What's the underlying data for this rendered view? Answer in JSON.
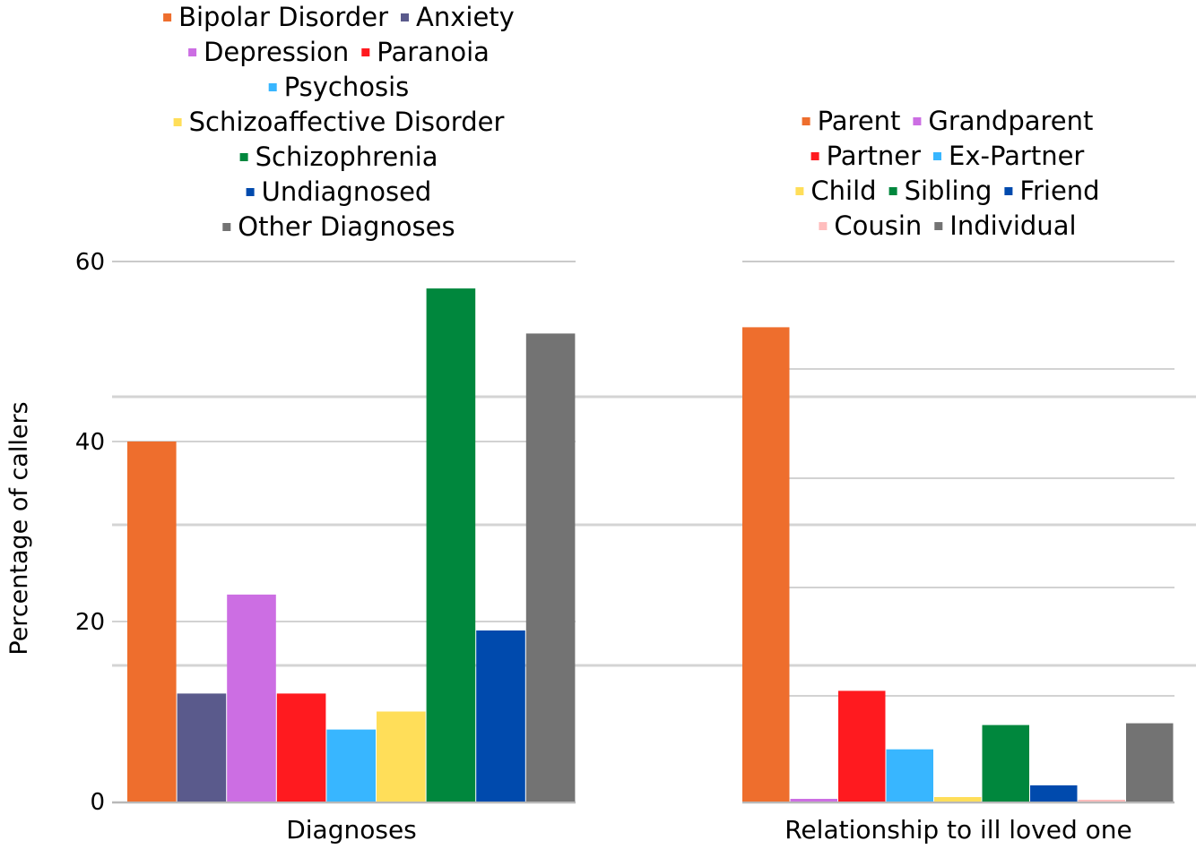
{
  "chart_data": [
    {
      "type": "bar",
      "title": "",
      "ylabel": "Percentage of callers",
      "xlabel": "",
      "ylim": [
        0,
        60
      ],
      "yticks": [
        0,
        20,
        40,
        60
      ],
      "grid": true,
      "legend_position": "top",
      "categories": [
        "Diagnoses"
      ],
      "series": [
        {
          "name": "Bipolar Disorder",
          "values": [
            40
          ],
          "color": "#EE6E2D"
        },
        {
          "name": "Anxiety",
          "values": [
            12
          ],
          "color": "#5A5A8C"
        },
        {
          "name": "Depression",
          "values": [
            23
          ],
          "color": "#CC6EE3"
        },
        {
          "name": "Paranoia",
          "values": [
            12
          ],
          "color": "#FF1A1F"
        },
        {
          "name": "Psychosis",
          "values": [
            8
          ],
          "color": "#38B6FF"
        },
        {
          "name": "Schizoaffective Disorder",
          "values": [
            10
          ],
          "color": "#FFDE59"
        },
        {
          "name": "Schizophrenia",
          "values": [
            57
          ],
          "color": "#00873D"
        },
        {
          "name": "Undiagnosed",
          "values": [
            19
          ],
          "color": "#004AAD"
        },
        {
          "name": "Other Diagnoses",
          "values": [
            52
          ],
          "color": "#737373"
        }
      ]
    },
    {
      "type": "bar",
      "title": "",
      "ylabel": "",
      "xlabel": "",
      "ylim": [
        0,
        60
      ],
      "grid": true,
      "legend_position": "top",
      "categories": [
        "Relationship to ill loved one"
      ],
      "series": [
        {
          "name": "Parent",
          "values": [
            52.7
          ],
          "color": "#EE6E2D"
        },
        {
          "name": "Grandparent",
          "values": [
            0.3
          ],
          "color": "#CC6EE3"
        },
        {
          "name": "Partner",
          "values": [
            12.3
          ],
          "color": "#FF1A1F"
        },
        {
          "name": "Ex-Partner",
          "values": [
            5.8
          ],
          "color": "#38B6FF"
        },
        {
          "name": "Child",
          "values": [
            0.5
          ],
          "color": "#FFDE59"
        },
        {
          "name": "Sibling",
          "values": [
            8.5
          ],
          "color": "#00873D"
        },
        {
          "name": "Friend",
          "values": [
            1.8
          ],
          "color": "#004AAD"
        },
        {
          "name": "Cousin",
          "values": [
            0.2
          ],
          "color": "#FFBDBD"
        },
        {
          "name": "Individual",
          "values": [
            8.7
          ],
          "color": "#737373"
        }
      ]
    }
  ]
}
